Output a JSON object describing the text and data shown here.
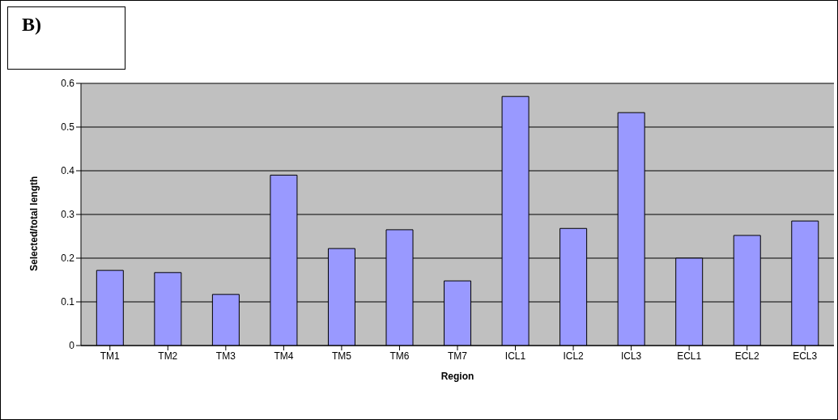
{
  "chart_data": {
    "type": "bar",
    "title": "B)",
    "xlabel": "Region",
    "ylabel": "Selected/total length",
    "categories": [
      "TM1",
      "TM2",
      "TM3",
      "TM4",
      "TM5",
      "TM6",
      "TM7",
      "ICL1",
      "ICL2",
      "ICL3",
      "ECL1",
      "ECL2",
      "ECL3"
    ],
    "values": [
      0.172,
      0.167,
      0.117,
      0.39,
      0.222,
      0.265,
      0.148,
      0.57,
      0.268,
      0.533,
      0.2,
      0.252,
      0.285
    ],
    "color": "#9999ff",
    "ylim": [
      0,
      0.6
    ],
    "yticks": [
      0,
      0.1,
      0.2,
      0.3,
      0.4,
      0.5,
      0.6
    ],
    "grid": "y",
    "legend": false
  }
}
